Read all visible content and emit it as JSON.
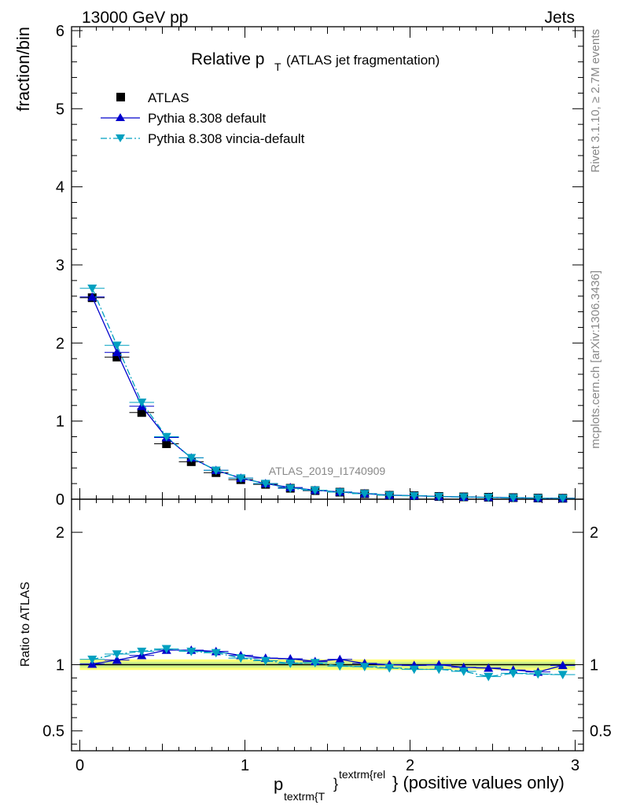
{
  "header": {
    "left": "13000 GeV pp",
    "right": "Jets"
  },
  "side_texts": {
    "rivet": "Rivet 3.1.10, ≥ 2.7M events",
    "mcplots": "mcplots.cern.ch [arXiv:1306.3436]"
  },
  "analysis_tag": "ATLAS_2019_I1740909",
  "chart_data": [
    {
      "type": "scatter",
      "panel": "main",
      "title_main": "Relative p",
      "title_sub": "T",
      "title_rest": "(ATLAS jet fragmentation)",
      "ylabel": "fraction/bin",
      "xlim": [
        -0.05,
        3.05
      ],
      "ylim": [
        0,
        6.05
      ],
      "yticks": [
        "0",
        "1",
        "2",
        "3",
        "4",
        "5",
        "6"
      ],
      "legend_placement": "top-left",
      "x": [
        0.075,
        0.225,
        0.375,
        0.525,
        0.675,
        0.825,
        0.975,
        1.125,
        1.275,
        1.425,
        1.575,
        1.725,
        1.875,
        2.025,
        2.175,
        2.325,
        2.475,
        2.625,
        2.775,
        2.925
      ],
      "series": [
        {
          "name": "ATLAS",
          "color": "#000000",
          "marker": "square",
          "values": [
            2.58,
            1.82,
            1.11,
            0.71,
            0.48,
            0.34,
            0.25,
            0.19,
            0.14,
            0.11,
            0.09,
            0.07,
            0.05,
            0.045,
            0.035,
            0.03,
            0.025,
            0.02,
            0.015,
            0.012
          ]
        },
        {
          "name": "Pythia 8.308 default",
          "color": "#0000cc",
          "marker": "triangle-up",
          "line": "solid",
          "values": [
            2.59,
            1.88,
            1.19,
            0.79,
            0.53,
            0.37,
            0.27,
            0.2,
            0.15,
            0.115,
            0.093,
            0.072,
            0.051,
            0.045,
            0.035,
            0.029,
            0.024,
            0.019,
            0.014,
            0.012
          ]
        },
        {
          "name": "Pythia 8.308 vincia-default",
          "color": "#00a0c0",
          "marker": "triangle-down",
          "line": "dash-dot",
          "values": [
            2.7,
            1.97,
            1.24,
            0.8,
            0.53,
            0.37,
            0.27,
            0.2,
            0.14,
            0.115,
            0.09,
            0.07,
            0.05,
            0.044,
            0.034,
            0.029,
            0.023,
            0.019,
            0.014,
            0.011
          ]
        }
      ]
    },
    {
      "type": "scatter",
      "panel": "ratio",
      "ylabel": "Ratio to ATLAS",
      "xlabel_main": "p",
      "xlabel_sub": "textrm{T",
      "xlabel_sup": "textrm{rel",
      "xlabel_rest": "} (positive values only)",
      "xlim": [
        -0.05,
        3.05
      ],
      "ylim": [
        0.35,
        2.25
      ],
      "xticks": [
        "0",
        "1",
        "2",
        "3"
      ],
      "yticks": [
        "0.5",
        "1",
        "2"
      ],
      "band": {
        "lo": 0.96,
        "hi": 1.04
      },
      "x": [
        0.075,
        0.225,
        0.375,
        0.525,
        0.675,
        0.825,
        0.975,
        1.125,
        1.275,
        1.425,
        1.575,
        1.725,
        1.875,
        2.025,
        2.175,
        2.325,
        2.475,
        2.625,
        2.775,
        2.925
      ],
      "series": [
        {
          "name": "Pythia 8.308 default",
          "color": "#0000cc",
          "marker": "triangle-up",
          "line": "solid",
          "values": [
            1.005,
            1.035,
            1.07,
            1.11,
            1.11,
            1.1,
            1.07,
            1.05,
            1.045,
            1.025,
            1.04,
            1.01,
            1.0,
            0.995,
            1.0,
            0.98,
            0.975,
            0.96,
            0.945,
            0.995
          ]
        },
        {
          "name": "Pythia 8.308 vincia-default",
          "color": "#00a0c0",
          "marker": "triangle-down",
          "line": "dash-dot",
          "values": [
            1.04,
            1.08,
            1.1,
            1.12,
            1.1,
            1.09,
            1.05,
            1.03,
            1.01,
            1.015,
            0.99,
            0.985,
            0.975,
            0.965,
            0.965,
            0.95,
            0.91,
            0.935,
            0.93,
            0.925
          ]
        }
      ]
    }
  ]
}
